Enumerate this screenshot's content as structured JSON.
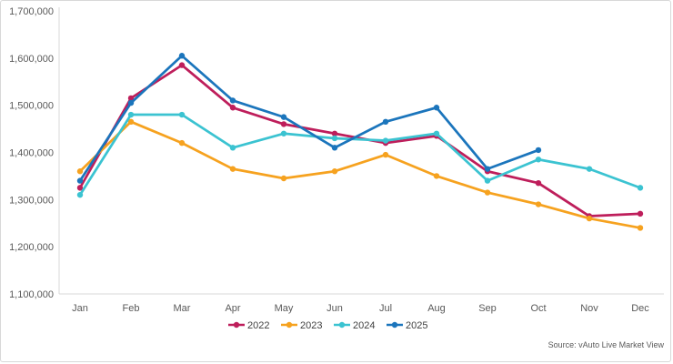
{
  "chart_data": {
    "type": "line",
    "title": "",
    "xlabel": "",
    "ylabel": "",
    "categories": [
      "Jan",
      "Feb",
      "Mar",
      "Apr",
      "May",
      "Jun",
      "Jul",
      "Aug",
      "Sep",
      "Oct",
      "Nov",
      "Dec"
    ],
    "series": [
      {
        "name": "2022",
        "color": "#be1e5b",
        "values": [
          1325000,
          1515000,
          1585000,
          1495000,
          1460000,
          1440000,
          1420000,
          1435000,
          1360000,
          1335000,
          1265000,
          1270000
        ]
      },
      {
        "name": "2023",
        "color": "#f6a21f",
        "values": [
          1360000,
          1465000,
          1420000,
          1365000,
          1345000,
          1360000,
          1395000,
          1350000,
          1315000,
          1290000,
          1260000,
          1240000
        ]
      },
      {
        "name": "2024",
        "color": "#3bc3d1",
        "values": [
          1310000,
          1480000,
          1480000,
          1410000,
          1440000,
          1430000,
          1425000,
          1440000,
          1340000,
          1385000,
          1365000,
          1325000
        ]
      },
      {
        "name": "2025",
        "color": "#1b75bc",
        "values": [
          1340000,
          1505000,
          1605000,
          1510000,
          1475000,
          1410000,
          1465000,
          1495000,
          1365000,
          1405000,
          null,
          null
        ]
      }
    ],
    "ylim": [
      1100000,
      1700000
    ],
    "y_tick_step": 100000,
    "y_tick_labels": [
      "1,100,000",
      "1,200,000",
      "1,300,000",
      "1,400,000",
      "1,500,000",
      "1,600,000",
      "1,700,000"
    ],
    "grid": false,
    "legend_position": "bottom",
    "axis_color": "#d9d9d9"
  },
  "footer": {
    "source_label": "Source: vAuto Live Market View"
  }
}
